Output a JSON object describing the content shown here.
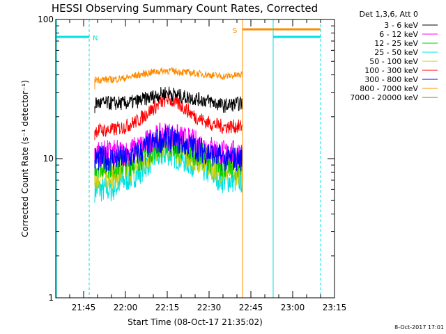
{
  "chart_data": {
    "type": "line",
    "title": "HESSI Observing Summary Count Rates, Corrected",
    "xlabel": "Start Time (08-Oct-17 21:35:02)",
    "ylabel": "Corrected Count Rate (s⁻¹ detector⁻¹)",
    "yscale": "log",
    "ylim": [
      1,
      100
    ],
    "xlim": [
      "21:35",
      "23:15"
    ],
    "x_ticks": [
      "21:45",
      "22:00",
      "22:15",
      "22:30",
      "22:45",
      "23:00",
      "23:15"
    ],
    "y_ticks": [
      "1",
      "10",
      "100"
    ],
    "legend_title": "Det 1,3,6, Att 0",
    "legend_position": "right",
    "grid": false,
    "data_start": "21:49",
    "data_end": "22:42",
    "series": [
      {
        "name": "3 - 6 keV",
        "color": "#000000",
        "x": [
          "21:49",
          "21:55",
          "22:00",
          "22:05",
          "22:10",
          "22:15",
          "22:20",
          "22:25",
          "22:30",
          "22:35",
          "22:42"
        ],
        "y": [
          25,
          25,
          25,
          26,
          28,
          30,
          28,
          27,
          26,
          24,
          25
        ]
      },
      {
        "name": "6 - 12 keV",
        "color": "#ff00ff",
        "x": [
          "21:49",
          "21:55",
          "22:00",
          "22:05",
          "22:10",
          "22:15",
          "22:20",
          "22:25",
          "22:30",
          "22:35",
          "22:42"
        ],
        "y": [
          11,
          11,
          11,
          12,
          14,
          15,
          14,
          13,
          12,
          11,
          11
        ]
      },
      {
        "name": "12 - 25 keV",
        "color": "#00cc00",
        "x": [
          "21:49",
          "21:55",
          "22:00",
          "22:05",
          "22:10",
          "22:15",
          "22:20",
          "22:25",
          "22:30",
          "22:35",
          "22:42"
        ],
        "y": [
          9,
          9,
          9,
          10,
          12,
          13,
          12,
          11,
          10,
          9,
          9
        ]
      },
      {
        "name": "25 - 50 keV",
        "color": "#00e0e0",
        "x": [
          "21:49",
          "21:55",
          "22:00",
          "22:05",
          "22:10",
          "22:15",
          "22:20",
          "22:25",
          "22:30",
          "22:35",
          "22:42"
        ],
        "y": [
          6,
          6,
          7,
          8,
          10,
          11,
          10,
          9,
          8,
          7,
          7
        ]
      },
      {
        "name": "50 - 100 keV",
        "color": "#cccc00",
        "x": [
          "21:49",
          "21:55",
          "22:00",
          "22:05",
          "22:10",
          "22:15",
          "22:20",
          "22:25",
          "22:30",
          "22:35",
          "22:42"
        ],
        "y": [
          7.5,
          7.5,
          8,
          9,
          11,
          12,
          11,
          10,
          9,
          8,
          8
        ]
      },
      {
        "name": "100 - 300 keV",
        "color": "#ff0000",
        "x": [
          "21:49",
          "21:55",
          "22:00",
          "22:05",
          "22:10",
          "22:15",
          "22:20",
          "22:25",
          "22:30",
          "22:35",
          "22:42"
        ],
        "y": [
          16,
          16,
          17,
          19,
          23,
          27,
          24,
          20,
          18,
          17,
          17
        ]
      },
      {
        "name": "300 - 800 keV",
        "color": "#0000ff",
        "x": [
          "21:49",
          "21:55",
          "22:00",
          "22:05",
          "22:10",
          "22:15",
          "22:20",
          "22:25",
          "22:30",
          "22:35",
          "22:42"
        ],
        "y": [
          10,
          10,
          10,
          11,
          13,
          14,
          13,
          12,
          11,
          10,
          10
        ]
      },
      {
        "name": "800 - 7000 keV",
        "color": "#ff8c00",
        "x": [
          "21:49",
          "21:55",
          "22:00",
          "22:05",
          "22:10",
          "22:15",
          "22:20",
          "22:25",
          "22:30",
          "22:35",
          "22:42"
        ],
        "y": [
          37,
          37,
          38,
          40,
          42,
          43,
          42,
          41,
          40,
          39,
          40
        ]
      },
      {
        "name": "7000 - 20000 keV",
        "color": "#808000",
        "x": [],
        "y": []
      }
    ],
    "annotations": [
      {
        "label": "N",
        "color": "#00e0e0",
        "start": "21:35",
        "end": "21:47",
        "level": 75
      },
      {
        "label": "S",
        "color": "#ff8c00",
        "start": "22:42",
        "end": "23:10",
        "level": 85
      },
      {
        "label": "",
        "color": "#00e0e0",
        "start": "22:53",
        "end": "23:10",
        "level": 75
      }
    ]
  },
  "timestamp": "8-Oct-2017 17:01"
}
